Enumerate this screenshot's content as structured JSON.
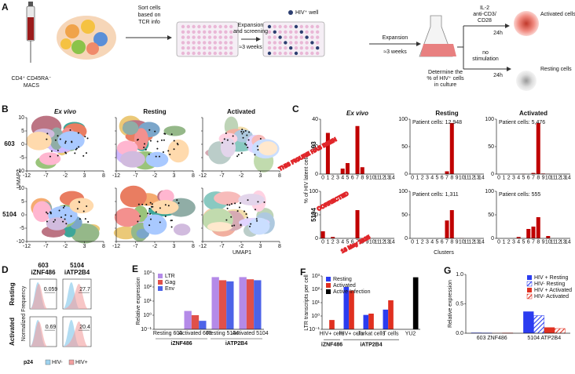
{
  "panel_a": {
    "letter": "A",
    "donor": [
      "CD4⁺ CD45RA⁻",
      "MACS"
    ],
    "sort": [
      "Sort cells",
      "based on",
      "TCR info"
    ],
    "screen": [
      "Expansion",
      "and screening"
    ],
    "screen_time": "≈3 weeks",
    "well_legend": "HIV⁺ well",
    "expand": "Expansion",
    "expand_time": "≈3 weeks",
    "determine": [
      "Determine the",
      "% of HIV⁺ cells",
      "in culture"
    ],
    "stim": [
      "IL-2",
      "anti-CD3/",
      "CD28"
    ],
    "stim_time": "24h",
    "activated": "Activated cells",
    "nostim": [
      "no",
      "stimulation"
    ],
    "nostim_time": "24h",
    "resting": "Resting cells"
  },
  "panel_b": {
    "letter": "B",
    "columns": [
      "Ex vivo",
      "Resting",
      "Activated"
    ],
    "rows": [
      "603",
      "5104"
    ],
    "y_label": "UMAP2",
    "x_label": "UMAP1",
    "xticks": [
      -12,
      -7,
      -2,
      3,
      8
    ],
    "yticks": [
      10,
      5,
      0,
      -5,
      -10
    ]
  },
  "panel_c": {
    "letter": "C",
    "columns": [
      "Ex vivo",
      "Resting",
      "Activated"
    ],
    "rows": [
      "603",
      "5104"
    ],
    "y_label": "% of HIV latent cells",
    "x_label": "Clusters"
  },
  "panel_d": {
    "letter": "D",
    "columns": [
      [
        "603",
        "iZNF486"
      ],
      [
        "5104",
        "iATP2B4"
      ]
    ],
    "rows": [
      "Resting",
      "Activated"
    ],
    "y_label": "Normalized Frequency",
    "x_label": "p24",
    "legend": [
      "HIV-",
      "HIV+"
    ],
    "gates": [
      [
        0.059,
        27.7
      ],
      [
        0.69,
        20.4
      ]
    ]
  },
  "chart_data": [
    {
      "type": "bar",
      "color": "#c00000",
      "categories": [
        0,
        1,
        2,
        3,
        4,
        5,
        6,
        7,
        8,
        9,
        10,
        11,
        12,
        13,
        14
      ],
      "values": [
        0,
        30,
        0,
        0,
        4,
        8,
        0,
        35,
        5,
        0,
        0,
        0,
        0,
        0,
        0
      ],
      "ylim": [
        0,
        40
      ],
      "yticks": [
        0,
        20,
        40
      ]
    },
    {
      "type": "bar",
      "color": "#c00000",
      "note": "Patient cells: 12,948",
      "categories": [
        0,
        1,
        2,
        3,
        4,
        5,
        6,
        7,
        8,
        9,
        10,
        11,
        12,
        13,
        14
      ],
      "values": [
        0,
        0,
        0,
        0,
        0,
        0,
        0,
        5,
        93,
        0,
        0,
        0,
        0,
        0,
        0
      ],
      "ylim": [
        0,
        100
      ],
      "yticks": [
        0,
        50,
        100
      ]
    },
    {
      "type": "bar",
      "color": "#c00000",
      "note": "Patient cells: 5,476",
      "categories": [
        0,
        1,
        2,
        3,
        4,
        5,
        6,
        7,
        8,
        9,
        10,
        11,
        12,
        13,
        14
      ],
      "values": [
        0,
        0,
        0,
        0,
        0.1,
        0.4,
        0,
        2,
        93,
        1,
        0.4,
        0,
        0,
        0,
        0
      ],
      "ylim": [
        0,
        100
      ],
      "yticks": [
        0,
        50,
        100
      ]
    },
    {
      "type": "bar",
      "color": "#c00000",
      "categories": [
        0,
        1,
        2,
        3,
        4,
        5,
        6,
        7,
        8,
        9,
        10,
        11,
        12,
        13,
        14
      ],
      "values": [
        15,
        0,
        3,
        0,
        0,
        0,
        0,
        60,
        0,
        0,
        0,
        0,
        0,
        0,
        0
      ],
      "ylim": [
        0,
        100
      ],
      "yticks": [
        0,
        50,
        100
      ]
    },
    {
      "type": "bar",
      "color": "#c00000",
      "note": "Patient cells: 1,311",
      "categories": [
        0,
        1,
        2,
        3,
        4,
        5,
        6,
        7,
        8,
        9,
        10,
        11,
        12,
        13,
        14
      ],
      "values": [
        0,
        0,
        0,
        0,
        0,
        0,
        0,
        38,
        60,
        0,
        0.5,
        0,
        0,
        0,
        0
      ],
      "ylim": [
        0,
        100
      ],
      "yticks": [
        0,
        50,
        100
      ]
    },
    {
      "type": "bar",
      "color": "#c00000",
      "note": "Patient cells: 555",
      "categories": [
        0,
        1,
        2,
        3,
        4,
        5,
        6,
        7,
        8,
        9,
        10,
        11,
        12,
        13,
        14
      ],
      "values": [
        0,
        0,
        0,
        0,
        3,
        0,
        20,
        25,
        45,
        0,
        5,
        0,
        0,
        0,
        0
      ],
      "ylim": [
        0,
        100
      ],
      "yticks": [
        0,
        50,
        100
      ]
    },
    {
      "type": "bar",
      "panel": "E",
      "y_label": "Relative expression",
      "log": true,
      "legend": "top-left",
      "categories": [
        "Resting 603",
        "Activated 603",
        "Resting 5104",
        "Activated 5104"
      ],
      "groups": [
        "iZNF486",
        "iATP2B4"
      ],
      "series": [
        {
          "name": "LTR",
          "color": "#b48ae8",
          "values": [
            null,
            2,
            500,
            500
          ]
        },
        {
          "name": "Gag",
          "color": "#e0504a",
          "values": [
            null,
            1,
            300,
            350
          ]
        },
        {
          "name": "Env",
          "color": "#4d63e8",
          "values": [
            null,
            0.4,
            250,
            300
          ]
        }
      ],
      "ylim": [
        0.1,
        1000
      ],
      "yticks": [
        {
          "value": 0.1,
          "label": "10⁻¹"
        },
        {
          "value": 1,
          "label": "10⁰"
        },
        {
          "value": 10,
          "label": "10¹"
        },
        {
          "value": 100,
          "label": "10²"
        },
        {
          "value": 1000,
          "label": "10³"
        }
      ]
    },
    {
      "type": "bar",
      "panel": "F",
      "y_label": "LTR transcripts per cell",
      "log": true,
      "legend": "top-left",
      "categories": [
        "HIV+ cells",
        "HIV+ cells",
        "Jurkat cells",
        "T cells",
        "YU2"
      ],
      "groups": [
        "iZNF486",
        "iATP2B4"
      ],
      "series": [
        {
          "name": "Resting",
          "color": "#2b3cf0",
          "values": [
            null,
            150,
            1.2,
            3,
            null
          ]
        },
        {
          "name": "Activated",
          "color": "#e03020",
          "values": [
            0.5,
            80,
            1.5,
            15,
            null
          ]
        },
        {
          "name": "Active Infection",
          "color": "#000000",
          "values": [
            null,
            null,
            null,
            null,
            800
          ]
        }
      ],
      "ylim": [
        0.1,
        1000
      ],
      "yticks": [
        {
          "value": 0.1,
          "label": "10⁻¹"
        },
        {
          "value": 1,
          "label": "10⁰"
        },
        {
          "value": 10,
          "label": "10¹"
        },
        {
          "value": 100,
          "label": "10²"
        },
        {
          "value": 1000,
          "label": "10³"
        }
      ]
    },
    {
      "type": "bar",
      "panel": "G",
      "y_label": "Relative expression",
      "legend": "top-right",
      "categories": [
        "603 ZNF486",
        "5104 ATP2B4"
      ],
      "series": [
        {
          "name": "HIV + Resting",
          "color": "#2b3cf0",
          "values": [
            0.01,
            0.37
          ]
        },
        {
          "name": "HIV- Resting",
          "color": "#2b3cf0",
          "hatch": true,
          "values": [
            0.005,
            0.3
          ]
        },
        {
          "name": "HIV + Activated",
          "color": "#e03020",
          "values": [
            0.005,
            0.1
          ]
        },
        {
          "name": "HIV- Activated",
          "color": "#e03020",
          "hatch": true,
          "values": [
            0.005,
            0.08
          ]
        }
      ],
      "ylim": [
        0,
        1
      ],
      "yticks": [
        {
          "value": 0,
          "label": "0.0"
        },
        {
          "value": 0.5,
          "label": "0.5"
        },
        {
          "value": 1,
          "label": "1.0"
        }
      ]
    }
  ],
  "watermark": [
    "THIS FIGURE HAS BEEN",
    "CORRECTED",
    "16 May 2025"
  ]
}
